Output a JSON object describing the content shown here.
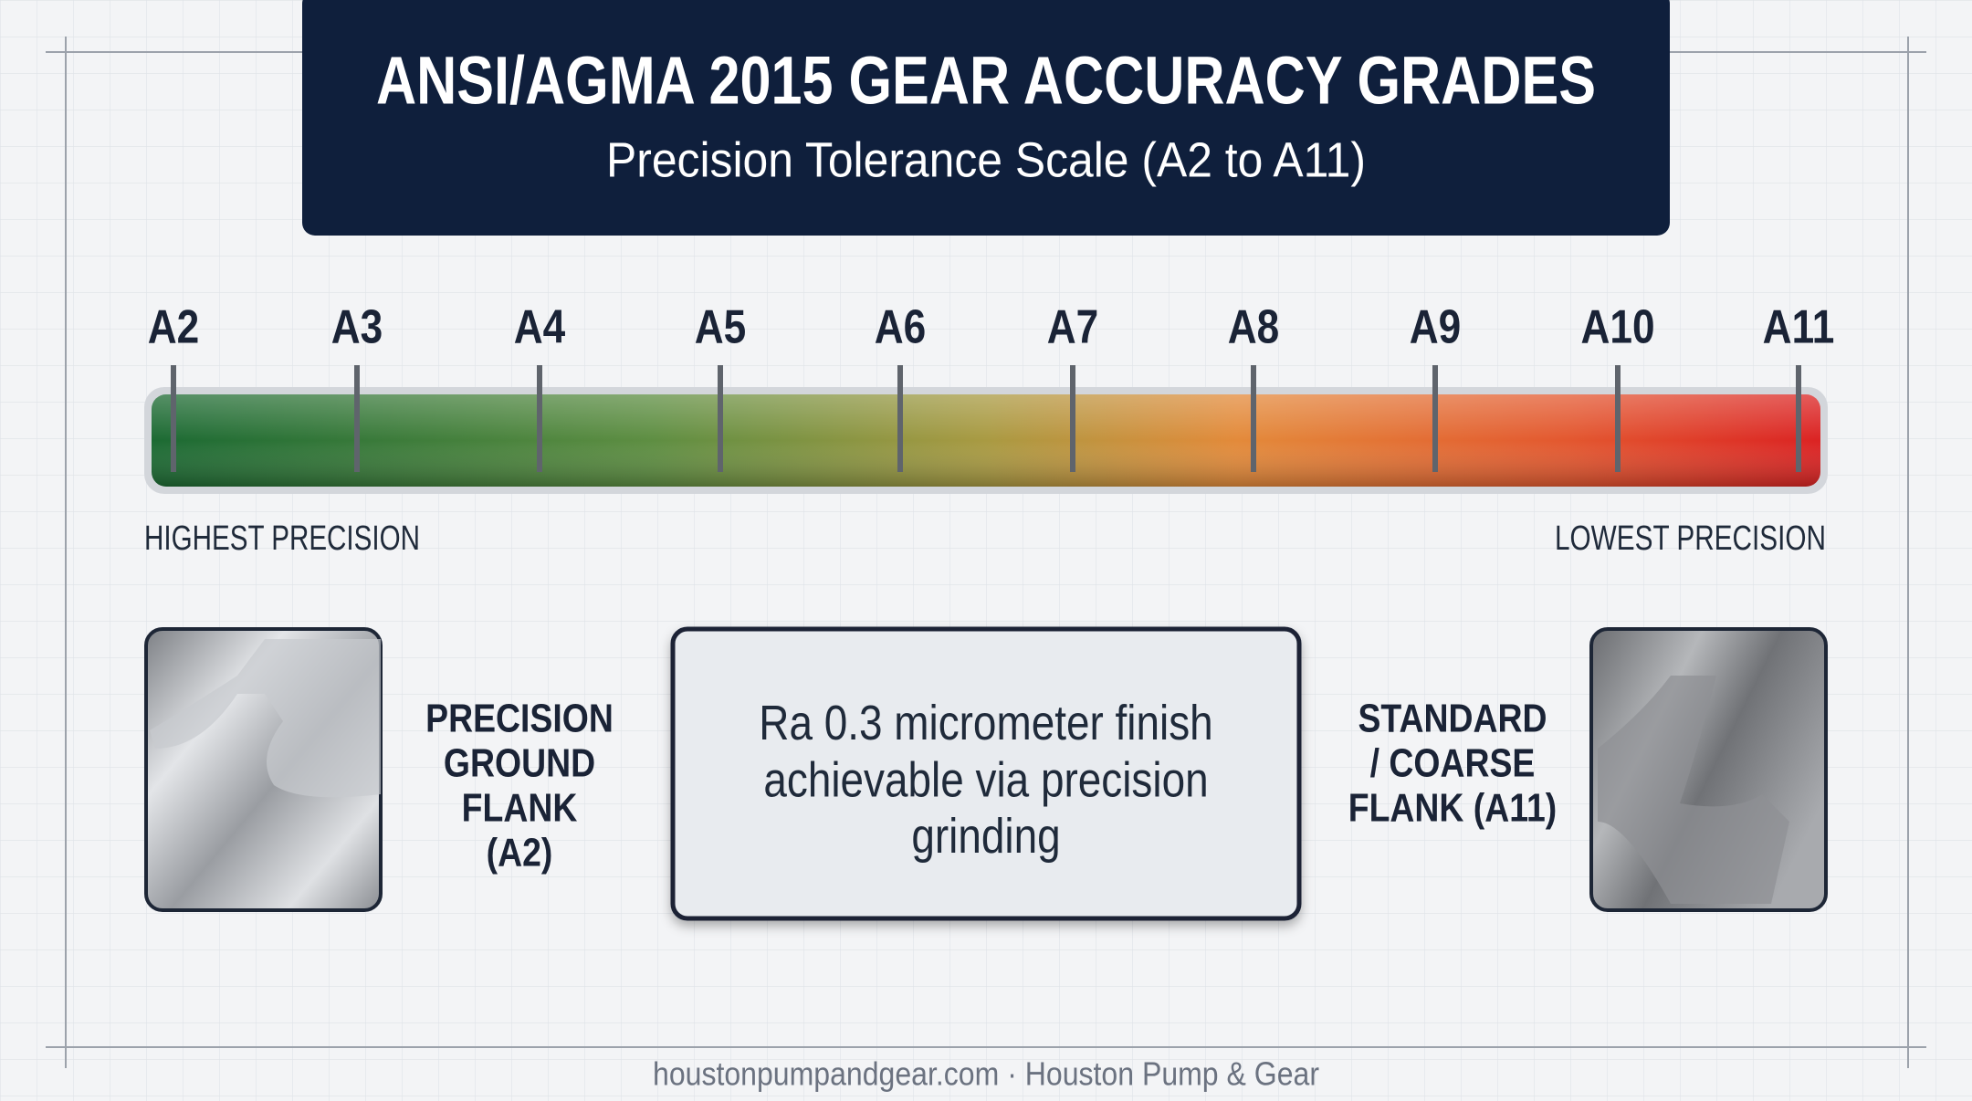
{
  "header": {
    "title": "ANSI/AGMA 2015 GEAR ACCURACY GRADES",
    "subtitle": "Precision Tolerance Scale (A2 to A11)"
  },
  "scale": {
    "grades": [
      "A2",
      "A3",
      "A4",
      "A5",
      "A6",
      "A7",
      "A8",
      "A9",
      "A10",
      "A11"
    ],
    "left_label": "HIGHEST PRECISION",
    "right_label": "LOWEST PRECISION"
  },
  "left_panel": {
    "label_lines": [
      "PRECISION",
      "GROUND",
      "FLANK",
      "(A2)"
    ]
  },
  "center_box": {
    "text_lines": [
      "Ra 0.3 micrometer finish",
      "achievable via precision",
      "grinding"
    ]
  },
  "right_panel": {
    "label_lines": [
      "STANDARD",
      "/ COARSE",
      "FLANK (A11)"
    ]
  },
  "footer": {
    "text": "houstonpumpandgear.com · Houston Pump & Gear"
  }
}
